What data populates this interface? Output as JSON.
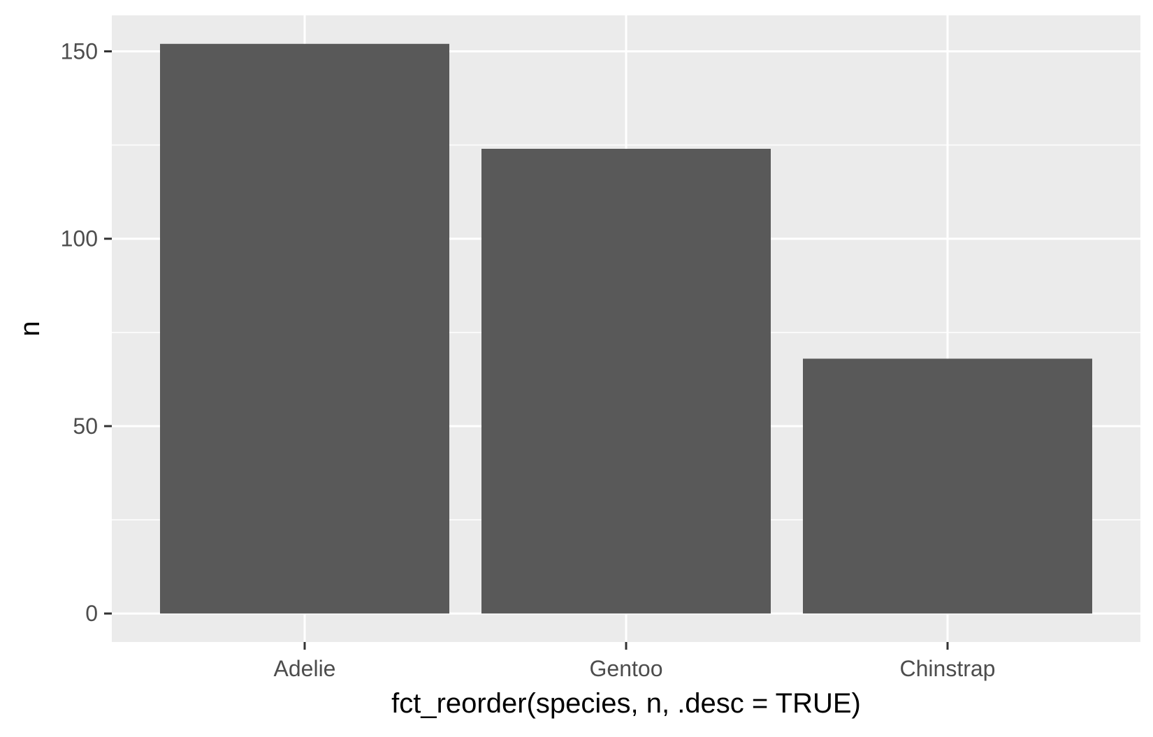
{
  "chart_data": {
    "type": "bar",
    "categories": [
      "Adelie",
      "Gentoo",
      "Chinstrap"
    ],
    "values": [
      152,
      124,
      68
    ],
    "title": "",
    "xlabel": "fct_reorder(species, n, .desc = TRUE)",
    "ylabel": "n",
    "ylim": [
      -7.6,
      159.6
    ],
    "yticks": [
      0,
      50,
      100,
      150
    ],
    "grid": true,
    "legend": "none",
    "colors": {
      "bar": "#595959",
      "panel": "#ebebeb",
      "grid": "#ffffff",
      "ticks": "#333333"
    }
  }
}
